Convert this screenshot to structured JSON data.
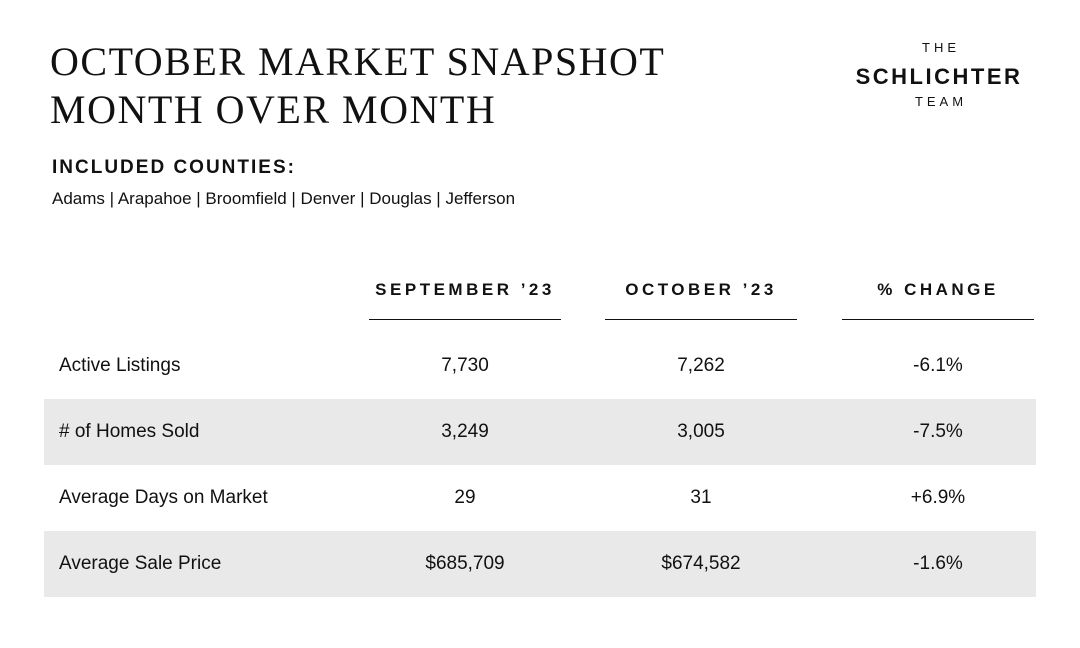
{
  "title": {
    "line1": "October Market Snapshot",
    "line2": "Month Over Month"
  },
  "logo": {
    "top": "THE",
    "middle": "SCHLICHTER",
    "bottom": "TEAM"
  },
  "counties": {
    "heading": "INCLUDED COUNTIES:",
    "list": "Adams | Arapahoe | Broomfield | Denver | Douglas | Jefferson"
  },
  "table": {
    "columns": [
      "SEPTEMBER ’23",
      "OCTOBER ’23",
      "% CHANGE"
    ],
    "rows": [
      {
        "label": "Active Listings",
        "sep": "7,730",
        "oct": "7,262",
        "change": "-6.1%"
      },
      {
        "label": "# of Homes Sold",
        "sep": "3,249",
        "oct": "3,005",
        "change": "-7.5%"
      },
      {
        "label": "Average Days on Market",
        "sep": "29",
        "oct": "31",
        "change": "+6.9%"
      },
      {
        "label": "Average Sale Price",
        "sep": "$685,709",
        "oct": "$674,582",
        "change": "-1.6%"
      }
    ]
  },
  "colors": {
    "text": "#111111",
    "row_shade": "#e9e9ea",
    "background": "#ffffff"
  }
}
